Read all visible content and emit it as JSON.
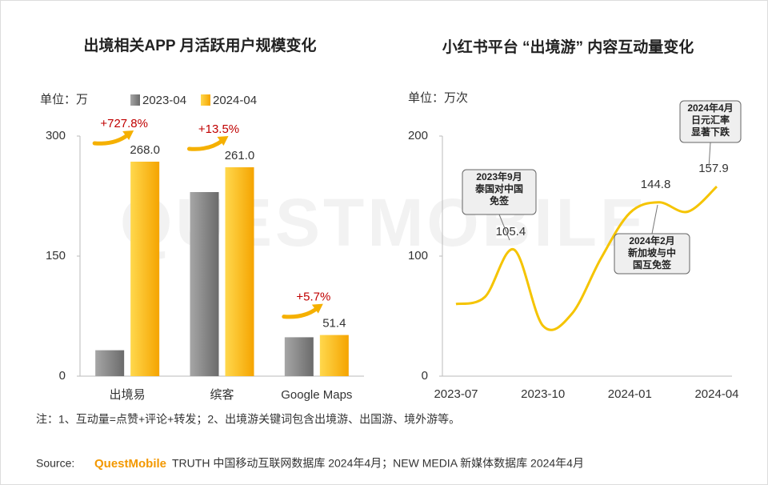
{
  "watermark": "QUESTMOBILE",
  "chart_data": [
    {
      "type": "bar",
      "title": "出境相关APP 月活跃用户规模变化",
      "unit": "单位：万",
      "categories": [
        "出境易",
        "缤客",
        "Google Maps"
      ],
      "series": [
        {
          "name": "2023-04",
          "color": "#7f7f7f",
          "values": [
            32.4,
            230.0,
            48.6
          ]
        },
        {
          "name": "2024-04",
          "color": "#ffc000",
          "values": [
            268.0,
            261.0,
            51.4
          ],
          "value_labels": [
            "268.0",
            "261.0",
            "51.4"
          ]
        }
      ],
      "growth_labels": [
        "+727.8%",
        "+13.5%",
        "+5.7%"
      ],
      "ylim": [
        0,
        300
      ],
      "yticks": [
        0,
        150,
        300
      ]
    },
    {
      "type": "line",
      "title": "小红书平台 “出境游” 内容互动量变化",
      "unit": "单位：万次",
      "categories": [
        "2023-07",
        null,
        null,
        "2023-10",
        null,
        null,
        "2024-01",
        null,
        null,
        "2024-04"
      ],
      "values": [
        60,
        66,
        105.4,
        42,
        52,
        98,
        136,
        144.8,
        137,
        157.9
      ],
      "value_labels": [
        null,
        null,
        "105.4",
        null,
        null,
        null,
        null,
        "144.8",
        null,
        "157.9"
      ],
      "color": "#f5c400",
      "annotations": [
        [
          "2023年9月",
          "泰国对中国",
          "免签"
        ],
        [
          "2024年2月",
          "新加坡与中",
          "国互免签"
        ],
        [
          "2024年4月",
          "日元汇率",
          "显著下跌"
        ]
      ],
      "ylim": [
        0,
        200
      ],
      "yticks": [
        0,
        100,
        200
      ]
    }
  ],
  "note": "注：1、互动量=点赞+评论+转发；2、出境游关键词包含出境游、出国游、境外游等。",
  "source": {
    "label": "Source:",
    "brand": "QuestMobile",
    "text": "TRUTH 中国移动互联网数据库 2024年4月；NEW MEDIA 新媒体数据库 2024年4月"
  }
}
